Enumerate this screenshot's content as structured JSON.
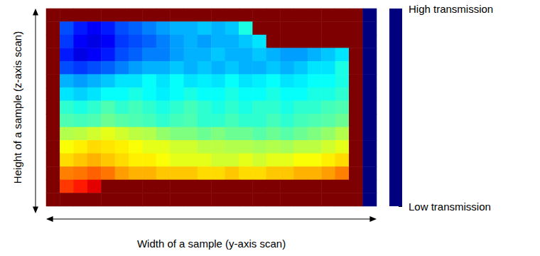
{
  "chart_data": {
    "type": "heatmap",
    "xlabel": "Width of a sample (y-axis scan)",
    "ylabel": "Height of a sample (z-axis scan)",
    "tick_labels": false,
    "cells": [
      [
        1,
        1,
        1,
        1,
        1,
        1,
        1,
        1,
        1,
        1,
        1,
        1,
        1,
        1,
        1,
        1,
        1,
        1,
        1,
        1,
        1,
        1,
        1,
        0
      ],
      [
        1,
        0.2,
        0.15,
        0.12,
        0.15,
        0.2,
        0.22,
        0.25,
        0.28,
        0.3,
        0.3,
        0.32,
        0.3,
        0.32,
        0.4,
        1,
        1,
        1,
        1,
        1,
        1,
        1,
        1,
        0
      ],
      [
        1,
        0.18,
        0.12,
        0.1,
        0.12,
        0.18,
        0.2,
        0.22,
        0.25,
        0.28,
        0.3,
        0.28,
        0.3,
        0.3,
        0.32,
        0.35,
        1,
        1,
        1,
        1,
        1,
        1,
        1,
        0
      ],
      [
        1,
        0.15,
        0.1,
        0.12,
        0.15,
        0.2,
        0.22,
        0.25,
        0.25,
        0.28,
        0.3,
        0.3,
        0.32,
        0.3,
        0.3,
        0.32,
        0.3,
        0.28,
        0.28,
        0.3,
        0.32,
        0.35,
        1,
        0
      ],
      [
        1,
        0.2,
        0.18,
        0.2,
        0.22,
        0.25,
        0.28,
        0.3,
        0.3,
        0.32,
        0.3,
        0.32,
        0.3,
        0.32,
        0.3,
        0.3,
        0.32,
        0.3,
        0.32,
        0.35,
        0.35,
        0.4,
        1,
        0
      ],
      [
        1,
        0.3,
        0.28,
        0.3,
        0.32,
        0.35,
        0.35,
        0.38,
        0.35,
        0.38,
        0.35,
        0.36,
        0.35,
        0.38,
        0.35,
        0.36,
        0.38,
        0.35,
        0.36,
        0.38,
        0.38,
        0.4,
        1,
        0
      ],
      [
        1,
        0.35,
        0.33,
        0.35,
        0.38,
        0.38,
        0.4,
        0.38,
        0.36,
        0.38,
        0.4,
        0.38,
        0.38,
        0.4,
        0.38,
        0.38,
        0.4,
        0.38,
        0.38,
        0.4,
        0.4,
        0.42,
        1,
        0
      ],
      [
        1,
        0.42,
        0.4,
        0.42,
        0.45,
        0.42,
        0.44,
        0.42,
        0.4,
        0.42,
        0.44,
        0.42,
        0.4,
        0.42,
        0.4,
        0.42,
        0.42,
        0.4,
        0.42,
        0.42,
        0.44,
        0.45,
        1,
        0
      ],
      [
        1,
        0.45,
        0.44,
        0.45,
        0.48,
        0.46,
        0.45,
        0.44,
        0.42,
        0.44,
        0.45,
        0.42,
        0.42,
        0.44,
        0.42,
        0.42,
        0.44,
        0.42,
        0.44,
        0.45,
        0.46,
        0.48,
        1,
        0
      ],
      [
        1,
        0.55,
        0.56,
        0.58,
        0.6,
        0.58,
        0.56,
        0.55,
        0.52,
        0.5,
        0.5,
        0.48,
        0.5,
        0.48,
        0.48,
        0.46,
        0.48,
        0.46,
        0.48,
        0.5,
        0.52,
        0.55,
        1,
        0
      ],
      [
        1,
        0.62,
        0.64,
        0.66,
        0.65,
        0.64,
        0.62,
        0.6,
        0.6,
        0.58,
        0.58,
        0.56,
        0.56,
        0.55,
        0.55,
        0.54,
        0.55,
        0.54,
        0.56,
        0.56,
        0.58,
        0.6,
        1,
        0
      ],
      [
        1,
        0.66,
        0.68,
        0.7,
        0.68,
        0.66,
        0.64,
        0.64,
        0.62,
        0.6,
        0.6,
        0.6,
        0.58,
        0.58,
        0.6,
        0.58,
        0.6,
        0.6,
        0.62,
        0.62,
        0.64,
        0.66,
        1,
        0
      ],
      [
        1,
        0.75,
        0.76,
        0.78,
        0.76,
        0.72,
        0.7,
        0.7,
        0.68,
        0.68,
        0.68,
        0.66,
        0.66,
        0.68,
        0.66,
        0.66,
        0.68,
        0.68,
        0.7,
        0.7,
        0.72,
        0.75,
        1,
        0
      ],
      [
        1,
        0.82,
        0.85,
        0.9,
        1,
        1,
        1,
        1,
        1,
        1,
        1,
        1,
        1,
        1,
        1,
        1,
        1,
        1,
        1,
        1,
        1,
        1,
        1,
        0
      ],
      [
        1,
        1,
        1,
        1,
        1,
        1,
        1,
        1,
        1,
        1,
        1,
        1,
        1,
        1,
        1,
        1,
        1,
        1,
        1,
        1,
        1,
        1,
        1,
        0
      ]
    ],
    "colorbar": {
      "range": [
        0,
        1
      ],
      "ticks": [
        {
          "value": 0,
          "label": "Low transmission"
        },
        {
          "value": 1,
          "label": "High transmission"
        }
      ]
    }
  }
}
